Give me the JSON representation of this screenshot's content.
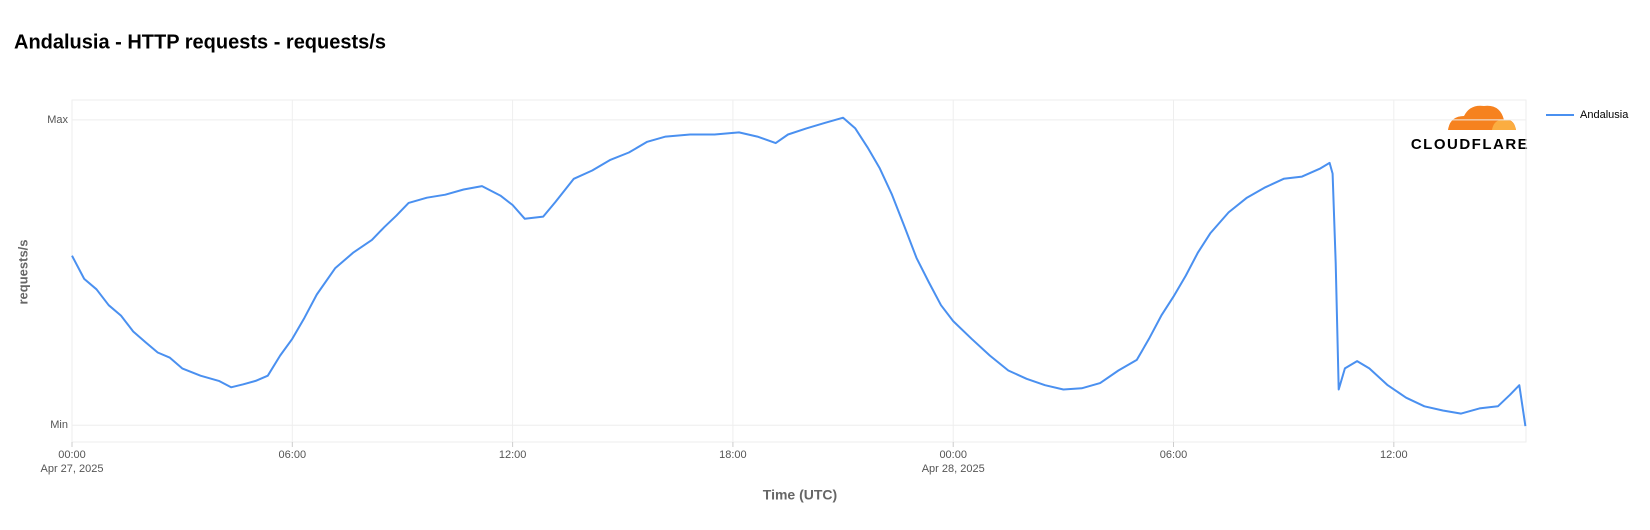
{
  "chart_data": {
    "type": "line",
    "title": "Andalusia - HTTP requests - requests/s",
    "y_label": "requests/s",
    "x_label": "Time (UTC)",
    "watermark": "CLOUDFLARE",
    "grid": true,
    "legend": "right",
    "ylim": [
      -5.5,
      106.5
    ],
    "yticks": [
      {
        "value": 0,
        "label": "Min"
      },
      {
        "value": 100,
        "label": "Max"
      }
    ],
    "xlim": [
      "2025-04-27 00:00",
      "2025-04-28 15:36"
    ],
    "xticks": [
      {
        "value": "2025-04-27 00:00",
        "label": "00:00",
        "sublabel": "Apr 27, 2025"
      },
      {
        "value": "2025-04-27 06:00",
        "label": "06:00"
      },
      {
        "value": "2025-04-27 12:00",
        "label": "12:00"
      },
      {
        "value": "2025-04-27 18:00",
        "label": "18:00"
      },
      {
        "value": "2025-04-28 00:00",
        "label": "00:00",
        "sublabel": "Apr 28, 2025"
      },
      {
        "value": "2025-04-28 06:00",
        "label": "06:00"
      },
      {
        "value": "2025-04-28 12:00",
        "label": "12:00"
      }
    ],
    "x": [
      "2025-04-27 00:00",
      "2025-04-27 00:20",
      "2025-04-27 00:40",
      "2025-04-27 01:00",
      "2025-04-27 01:20",
      "2025-04-27 01:40",
      "2025-04-27 02:00",
      "2025-04-27 02:20",
      "2025-04-27 02:40",
      "2025-04-27 03:00",
      "2025-04-27 03:30",
      "2025-04-27 04:00",
      "2025-04-27 04:20",
      "2025-04-27 04:40",
      "2025-04-27 05:00",
      "2025-04-27 05:20",
      "2025-04-27 05:40",
      "2025-04-27 06:00",
      "2025-04-27 06:20",
      "2025-04-27 06:40",
      "2025-04-27 07:10",
      "2025-04-27 07:40",
      "2025-04-27 08:10",
      "2025-04-27 08:30",
      "2025-04-27 08:50",
      "2025-04-27 09:10",
      "2025-04-27 09:40",
      "2025-04-27 10:10",
      "2025-04-27 10:40",
      "2025-04-27 11:10",
      "2025-04-27 11:40",
      "2025-04-27 12:00",
      "2025-04-27 12:20",
      "2025-04-27 12:50",
      "2025-04-27 13:10",
      "2025-04-27 13:40",
      "2025-04-27 14:10",
      "2025-04-27 14:40",
      "2025-04-27 15:10",
      "2025-04-27 15:40",
      "2025-04-27 16:10",
      "2025-04-27 16:50",
      "2025-04-27 17:30",
      "2025-04-27 18:10",
      "2025-04-27 18:40",
      "2025-04-27 19:10",
      "2025-04-27 19:30",
      "2025-04-27 20:00",
      "2025-04-27 20:30",
      "2025-04-27 21:00",
      "2025-04-27 21:20",
      "2025-04-27 21:40",
      "2025-04-27 22:00",
      "2025-04-27 22:20",
      "2025-04-27 22:40",
      "2025-04-27 23:00",
      "2025-04-27 23:20",
      "2025-04-27 23:40",
      "2025-04-28 00:00",
      "2025-04-28 00:30",
      "2025-04-28 01:00",
      "2025-04-28 01:30",
      "2025-04-28 02:00",
      "2025-04-28 02:30",
      "2025-04-28 03:00",
      "2025-04-28 03:30",
      "2025-04-28 04:00",
      "2025-04-28 04:30",
      "2025-04-28 05:00",
      "2025-04-28 05:20",
      "2025-04-28 05:40",
      "2025-04-28 06:00",
      "2025-04-28 06:20",
      "2025-04-28 06:40",
      "2025-04-28 07:00",
      "2025-04-28 07:30",
      "2025-04-28 08:00",
      "2025-04-28 08:30",
      "2025-04-28 09:00",
      "2025-04-28 09:30",
      "2025-04-28 10:00",
      "2025-04-28 10:15",
      "2025-04-28 10:20",
      "2025-04-28 10:25",
      "2025-04-28 10:30",
      "2025-04-28 10:40",
      "2025-04-28 11:00",
      "2025-04-28 11:20",
      "2025-04-28 11:50",
      "2025-04-28 12:20",
      "2025-04-28 12:50",
      "2025-04-28 13:20",
      "2025-04-28 13:50",
      "2025-04-28 14:20",
      "2025-04-28 14:50",
      "2025-04-28 15:10",
      "2025-04-28 15:25",
      "2025-04-28 15:35"
    ],
    "series": [
      {
        "name": "Andalusia",
        "color": "#4a90f0",
        "values": [
          55.5,
          47.9,
          44.5,
          39.3,
          35.9,
          30.7,
          27.2,
          23.8,
          22.1,
          18.6,
          16.2,
          14.5,
          12.4,
          13.4,
          14.5,
          16.2,
          22.8,
          28.3,
          35.2,
          42.8,
          51.4,
          56.6,
          60.7,
          64.8,
          68.6,
          72.8,
          74.5,
          75.5,
          77.2,
          78.3,
          75.2,
          72.1,
          67.6,
          68.3,
          73.1,
          80.7,
          83.4,
          86.9,
          89.3,
          92.8,
          94.5,
          95.2,
          95.2,
          95.9,
          94.5,
          92.4,
          95.2,
          97.2,
          99.0,
          100.7,
          97.2,
          91.0,
          84.1,
          75.5,
          65.2,
          54.8,
          46.9,
          39.3,
          34.1,
          28.3,
          22.8,
          17.9,
          15.2,
          13.1,
          11.7,
          12.1,
          13.8,
          17.9,
          21.4,
          28.3,
          35.9,
          42.1,
          49.0,
          56.6,
          62.8,
          69.7,
          74.5,
          77.9,
          80.7,
          81.4,
          84.1,
          85.9,
          82.4,
          53.1,
          11.7,
          18.6,
          21.0,
          18.6,
          13.1,
          9.0,
          6.2,
          4.8,
          3.8,
          5.5,
          6.2,
          10.0,
          13.1,
          -0.3
        ]
      }
    ]
  }
}
